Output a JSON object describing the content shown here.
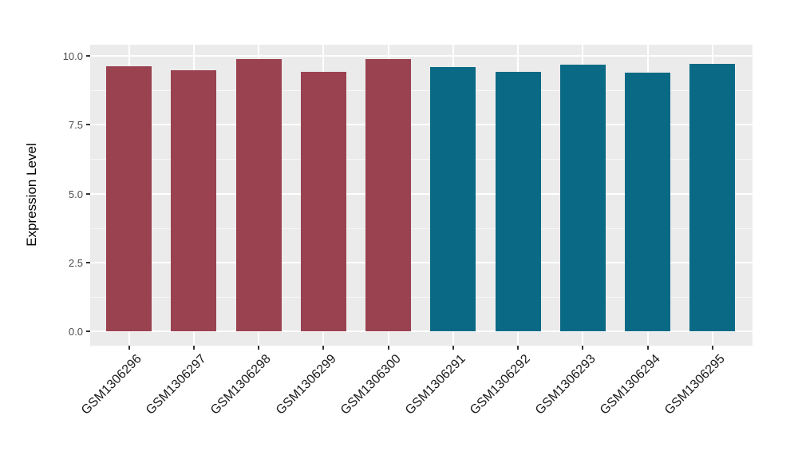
{
  "chart_data": {
    "type": "bar",
    "title": "",
    "xlabel": "",
    "ylabel": "Expression Level",
    "categories": [
      "GSM1306296",
      "GSM1306297",
      "GSM1306298",
      "GSM1306299",
      "GSM1306300",
      "GSM1306291",
      "GSM1306292",
      "GSM1306293",
      "GSM1306294",
      "GSM1306295"
    ],
    "values": [
      9.62,
      9.48,
      9.87,
      9.43,
      9.88,
      9.59,
      9.42,
      9.69,
      9.39,
      9.71
    ],
    "bar_colors": [
      "#9A4250",
      "#9A4250",
      "#9A4250",
      "#9A4250",
      "#9A4250",
      "#0A6A85",
      "#0A6A85",
      "#0A6A85",
      "#0A6A85",
      "#0A6A85"
    ],
    "group_colors": {
      "left_group": "#9A4250",
      "right_group": "#0A6A85"
    },
    "ylim": [
      0,
      10.4
    ],
    "yticks": [
      0,
      2.5,
      5,
      7.5,
      10
    ],
    "ytick_labels": [
      "0.0",
      "2.5",
      "5.0",
      "7.5",
      "10.0"
    ],
    "x_label_angle_deg": -45,
    "grid": true,
    "legend": false,
    "panel_background": "#EBEBEB",
    "grid_color": "#FFFFFF",
    "tick_color": "#333333",
    "tick_label_color": "#4D4D4D"
  }
}
